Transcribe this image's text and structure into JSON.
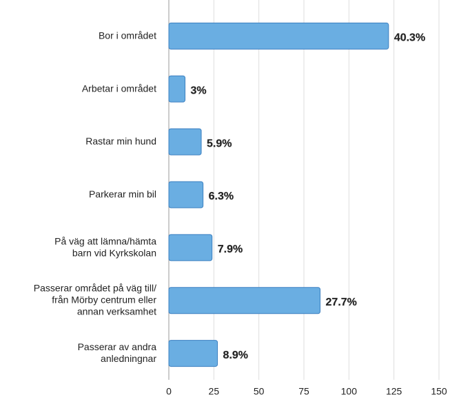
{
  "chart_data": {
    "type": "barh",
    "categories": [
      "Bor i området",
      "Arbetar i området",
      "Rastar min hund",
      "Parkerar min bil",
      "På väg att lämna/hämta\nbarn vid Kyrkskolan",
      "Passerar området på väg till/\nfrån Mörby centrum eller\nannan verksamhet",
      "Passerar av andra\nanledningnar"
    ],
    "values": [
      122,
      9,
      18,
      19,
      24,
      84,
      27
    ],
    "value_labels": [
      "40.3%",
      "3%",
      "5.9%",
      "6.3%",
      "7.9%",
      "27.7%",
      "8.9%"
    ],
    "color": "#6aaee2",
    "xlim": [
      0,
      150
    ],
    "xticks": [
      0,
      25,
      50,
      75,
      100,
      125,
      150
    ],
    "grid": true
  }
}
